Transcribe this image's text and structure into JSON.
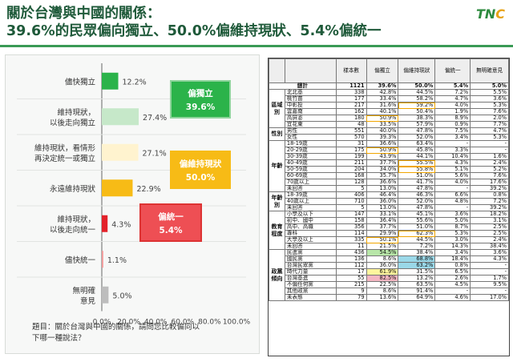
{
  "header": {
    "title_line1": "關於台灣與中國的關係：",
    "title_line2": "39.6%的民眾偏向獨立、50.0%偏維持現狀、5.4%偏統一",
    "logo_t": "T",
    "logo_n": "N",
    "logo_c": "C"
  },
  "chart_data": {
    "type": "bar",
    "orientation": "horizontal",
    "categories": [
      "儘快獨立",
      "維持現狀，以後走向獨立",
      "維持現狀，看情形再決定統一或獨立",
      "永遠維持現狀",
      "維持現狀，以後走向統一",
      "儘快統一",
      "無明確意見"
    ],
    "category_lines": [
      [
        "儘快獨立"
      ],
      [
        "維持現狀，",
        "以後走向獨立"
      ],
      [
        "維持現狀，看情形",
        "再決定統一或獨立"
      ],
      [
        "永遠維持現狀"
      ],
      [
        "維持現狀，",
        "以後走向統一"
      ],
      [
        "儘快統一"
      ],
      [
        "無明確",
        "意見"
      ]
    ],
    "values": [
      12.2,
      27.4,
      27.1,
      22.9,
      4.3,
      1.1,
      5.0
    ],
    "value_labels": [
      "12.2%",
      "27.4%",
      "27.1%",
      "22.9%",
      "4.3%",
      "1.1%",
      "5.0%"
    ],
    "colors": [
      "#2bb34a",
      "#c6e8c9",
      "#fff3cf",
      "#f7bb16",
      "#e3222a",
      "#f29a9a",
      "#bdbdbd"
    ],
    "xlim": [
      0,
      100
    ],
    "xticks": [
      "0.0%",
      "20.0%",
      "40.0%",
      "60.0%",
      "80.0%",
      "100.0%"
    ],
    "grid": false,
    "callouts": [
      {
        "label": "偏獨立",
        "value": "39.6%",
        "fill": "#2bb34a",
        "border": "#8fd49c"
      },
      {
        "label": "偏維持現狀",
        "value": "50.0%",
        "fill": "#f7bb16",
        "border": "#f7bb16"
      },
      {
        "label": "偏統一",
        "value": "5.4%",
        "fill": "#ee4f54",
        "border": "#d33"
      }
    ]
  },
  "question": {
    "line1": "題目：關於台灣與中國的關係，請問您比較偏向以",
    "line2": "下哪一種說法？"
  },
  "table": {
    "headers": [
      "",
      "",
      "樣本數",
      "偏獨立",
      "偏維持現狀",
      "偏統一",
      "無明確意見"
    ],
    "total": {
      "label": "總計",
      "cells": [
        "1121",
        "39.6%",
        "50.0%",
        "5.4%",
        "5.0%"
      ]
    },
    "groups": [
      {
        "name": "區域別",
        "rows": [
          {
            "label": "北北基",
            "cells": [
              "338",
              "42.8%",
              "44.5%",
              "7.2%",
              "5.5%"
            ]
          },
          {
            "label": "桃竹苗",
            "cells": [
              "177",
              "33.4%",
              "58.2%",
              "4.7%",
              "3.6%"
            ]
          },
          {
            "label": "中彰投",
            "cells": [
              "217",
              "31.6%",
              "59.2%",
              "4.0%",
              "5.3%"
            ]
          },
          {
            "label": "雲嘉南",
            "cells": [
              "162",
              "40.1%",
              "50.4%",
              "1.9%",
              "7.6%"
            ]
          },
          {
            "label": "高屏澎",
            "cells": [
              "180",
              "50.9%",
              "38.3%",
              "8.9%",
              "2.0%"
            ]
          },
          {
            "label": "宜花東",
            "cells": [
              "48",
              "33.5%",
              "57.9%",
              "0.9%",
              "7.7%"
            ]
          }
        ]
      },
      {
        "name": "性別",
        "rows": [
          {
            "label": "男性",
            "cells": [
              "551",
              "40.0%",
              "47.8%",
              "7.5%",
              "4.7%"
            ]
          },
          {
            "label": "女性",
            "cells": [
              "570",
              "39.3%",
              "52.0%",
              "3.4%",
              "5.3%"
            ]
          }
        ]
      },
      {
        "name": "年齡",
        "rows": [
          {
            "label": "18-19歲",
            "cells": [
              "31",
              "36.6%",
              "63.4%",
              "-",
              "-"
            ]
          },
          {
            "label": "20-29歲",
            "cells": [
              "175",
              "50.9%",
              "45.8%",
              "3.3%",
              "-"
            ]
          },
          {
            "label": "30-39歲",
            "cells": [
              "199",
              "43.9%",
              "44.1%",
              "10.4%",
              "1.6%"
            ]
          },
          {
            "label": "40-49歲",
            "cells": [
              "211",
              "37.7%",
              "55.5%",
              "4.3%",
              "2.4%"
            ]
          },
          {
            "label": "50-59歲",
            "cells": [
              "204",
              "34.0%",
              "55.8%",
              "5.1%",
              "5.2%"
            ]
          },
          {
            "label": "60-69歲",
            "cells": [
              "168",
              "35.7%",
              "51.0%",
              "5.6%",
              "7.6%"
            ]
          },
          {
            "label": "70歲以上",
            "cells": [
              "128",
              "36.6%",
              "41.7%",
              "4.0%",
              "17.6%"
            ]
          },
          {
            "label": "未回答",
            "cells": [
              "5",
              "13.0%",
              "47.8%",
              "-",
              "39.2%"
            ]
          }
        ]
      },
      {
        "name": "年齡別",
        "rows": [
          {
            "label": "18-39歲",
            "cells": [
              "406",
              "46.4%",
              "46.3%",
              "6.6%",
              "0.8%"
            ]
          },
          {
            "label": "40歲以上",
            "cells": [
              "710",
              "36.0%",
              "52.0%",
              "4.8%",
              "7.2%"
            ]
          },
          {
            "label": "未回答",
            "cells": [
              "5",
              "13.0%",
              "47.8%",
              "-",
              "39.2%"
            ]
          }
        ]
      },
      {
        "name": "教育程度",
        "rows": [
          {
            "label": "小學及以下",
            "cells": [
              "147",
              "33.1%",
              "45.1%",
              "3.6%",
              "18.2%"
            ]
          },
          {
            "label": "初中、國中",
            "cells": [
              "158",
              "36.4%",
              "55.6%",
              "5.0%",
              "3.1%"
            ]
          },
          {
            "label": "高中、高職",
            "cells": [
              "356",
              "37.7%",
              "51.0%",
              "8.7%",
              "2.5%"
            ]
          },
          {
            "label": "專科",
            "cells": [
              "114",
              "29.9%",
              "62.3%",
              "5.3%",
              "2.5%"
            ]
          },
          {
            "label": "大學及以上",
            "cells": [
              "335",
              "50.1%",
              "44.5%",
              "3.0%",
              "2.4%"
            ]
          },
          {
            "label": "未回答",
            "cells": [
              "11",
              "21.5%",
              "7.2%",
              "14.3%",
              "38.4%"
            ]
          }
        ]
      },
      {
        "name": "政黨傾向",
        "rows": [
          {
            "label": "民進黨",
            "cells": [
              "436",
              "54.5%",
              "38.4%",
              "3.4%",
              "3.6%"
            ]
          },
          {
            "label": "國民黨",
            "cells": [
              "136",
              "8.6%",
              "68.8%",
              "18.4%",
              "4.3%"
            ]
          },
          {
            "label": "台灣民眾黨",
            "cells": [
              "112",
              "36.0%",
              "63.2%",
              "0.8%",
              "-"
            ]
          },
          {
            "label": "時代力量",
            "cells": [
              "17",
              "61.9%",
              "31.5%",
              "6.5%",
              "-"
            ]
          },
          {
            "label": "台灣基進",
            "cells": [
              "55",
              "82.5%",
              "13.2%",
              "2.6%",
              "1.7%"
            ]
          },
          {
            "label": "不偏任何黨",
            "cells": [
              "215",
              "22.5%",
              "63.5%",
              "4.5%",
              "9.5%"
            ]
          },
          {
            "label": "其他政黨",
            "cells": [
              "9",
              "8.6%",
              "91.4%",
              "-",
              "-"
            ]
          },
          {
            "label": "未表態",
            "cells": [
              "79",
              "13.6%",
              "64.9%",
              "4.6%",
              "17.0%"
            ]
          }
        ]
      }
    ]
  }
}
